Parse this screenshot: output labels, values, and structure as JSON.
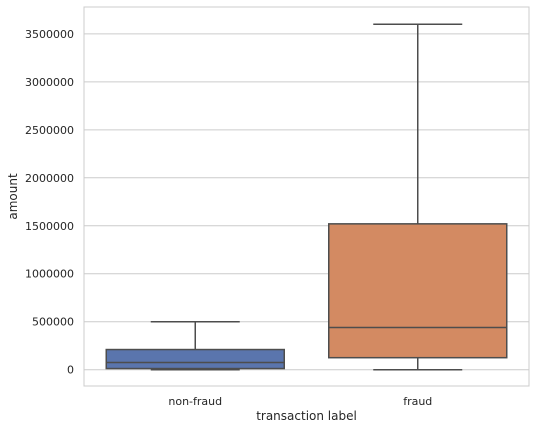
{
  "chart_data": {
    "type": "box",
    "xlabel": "transaction label",
    "ylabel": "amount",
    "categories": [
      "non-fraud",
      "fraud"
    ],
    "ylim": [
      -170000,
      3780000
    ],
    "yticks": [
      0,
      500000,
      1000000,
      1500000,
      2000000,
      2500000,
      3000000,
      3500000
    ],
    "ytick_labels": [
      "0",
      "500000",
      "1000000",
      "1500000",
      "2000000",
      "2500000",
      "3000000",
      "3500000"
    ],
    "grid": "horizontal",
    "boxes": [
      {
        "category": "non-fraud",
        "whisker_low": 0,
        "q1": 12000,
        "median": 75000,
        "q3": 210000,
        "whisker_high": 500000,
        "color": "#5a75ad"
      },
      {
        "category": "fraud",
        "whisker_low": 0,
        "q1": 125000,
        "median": 440000,
        "q3": 1520000,
        "whisker_high": 3600000,
        "color": "#d38a62"
      }
    ],
    "colors": {
      "line": "#4d4d4d",
      "grid": "#cccccc",
      "frame": "#cccccc"
    }
  }
}
